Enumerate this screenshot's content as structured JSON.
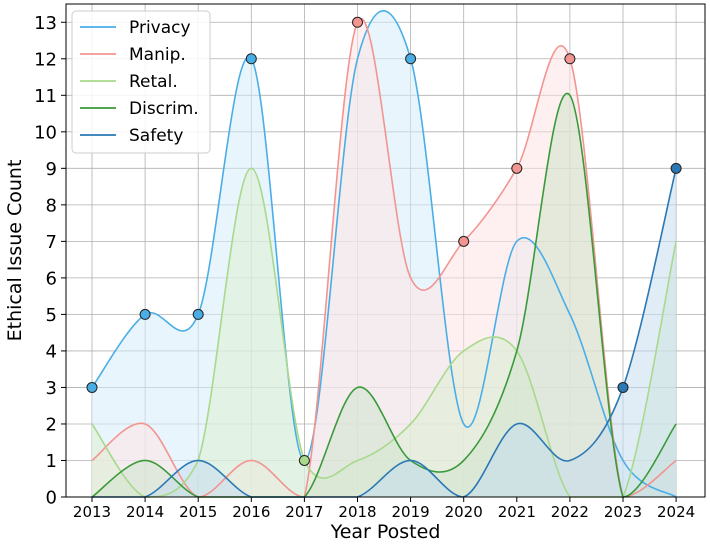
{
  "chart_data": {
    "type": "area",
    "xlabel": "Year Posted",
    "ylabel": "Ethical Issue Count",
    "categories": [
      "2013",
      "2014",
      "2015",
      "2016",
      "2017",
      "2018",
      "2019",
      "2020",
      "2021",
      "2022",
      "2023",
      "2024"
    ],
    "ylim": [
      0,
      13.5
    ],
    "yticks": [
      0,
      1,
      2,
      3,
      4,
      5,
      6,
      7,
      8,
      9,
      10,
      11,
      12,
      13
    ],
    "grid": true,
    "legend_position": "top-left",
    "series": [
      {
        "name": "Privacy",
        "color": "#4aaee6",
        "fill": "#d6ecfb",
        "values": [
          3,
          5,
          5,
          12,
          1,
          12,
          12,
          2,
          7,
          5,
          1,
          0
        ],
        "markers": [
          0,
          1,
          2,
          3,
          6
        ]
      },
      {
        "name": "Manip.",
        "color": "#f29590",
        "fill": "#fde3e3",
        "values": [
          1,
          2,
          0,
          1,
          0,
          13,
          6,
          7,
          9,
          12,
          0,
          1
        ],
        "markers": [
          5,
          7,
          8,
          9
        ]
      },
      {
        "name": "Retal.",
        "color": "#a8d98c",
        "fill": "#dcefd2",
        "values": [
          2,
          0,
          1,
          9,
          1,
          1,
          2,
          4,
          4,
          0,
          0,
          7
        ],
        "markers": [
          4
        ]
      },
      {
        "name": "Discrim.",
        "color": "#3a9a3a",
        "fill": "#cfe3cc",
        "values": [
          0,
          1,
          0,
          0,
          0,
          3,
          1,
          1,
          4,
          11,
          0,
          2
        ],
        "markers": []
      },
      {
        "name": "Safety",
        "color": "#2a78b5",
        "fill": "#c6dcee",
        "values": [
          0,
          0,
          1,
          0,
          0,
          0,
          1,
          0,
          2,
          1,
          3,
          9
        ],
        "markers": [
          10,
          11
        ]
      }
    ]
  }
}
